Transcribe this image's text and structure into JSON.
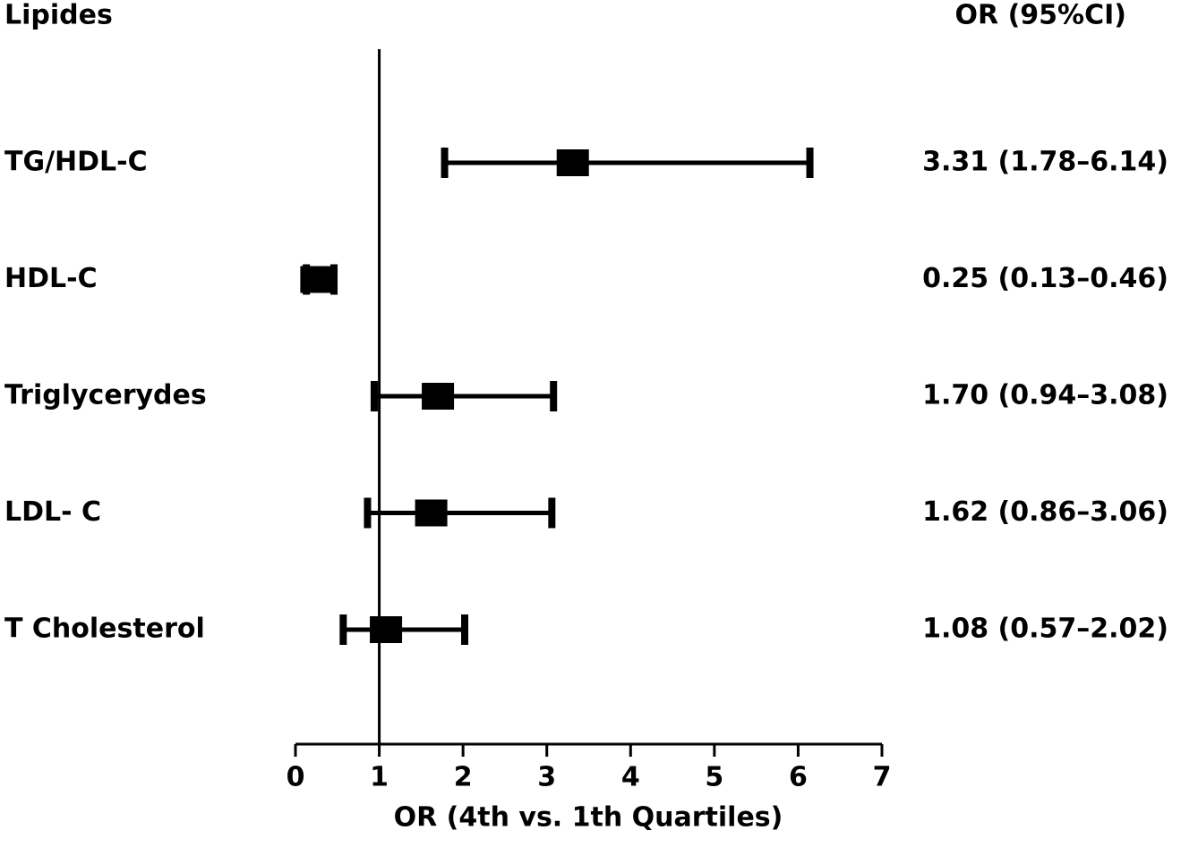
{
  "chart_data": {
    "type": "forest",
    "row_header": "Lipides",
    "value_header": "OR (95%CI)",
    "xlabel": "OR (4th vs. 1th Quartiles)",
    "categories": [
      "TG/HDL-C",
      "HDL-C",
      "Triglycerydes",
      "LDL- C",
      "T Cholesterol"
    ],
    "values": [
      3.31,
      0.25,
      1.7,
      1.62,
      1.08
    ],
    "low": [
      1.78,
      0.13,
      0.94,
      0.86,
      0.57
    ],
    "high": [
      6.14,
      0.46,
      3.08,
      3.06,
      2.02
    ],
    "value_labels": [
      "3.31 (1.78–6.14)",
      "0.25 (0.13–0.46)",
      "1.70 (0.94–3.08)",
      "1.62 (0.86–3.06)",
      "1.08 (0.57–2.02)"
    ],
    "color": "#000000",
    "reference_line": 1,
    "xlim": [
      0,
      7
    ],
    "xticks": [
      0,
      1,
      2,
      3,
      4,
      5,
      6,
      7
    ]
  }
}
